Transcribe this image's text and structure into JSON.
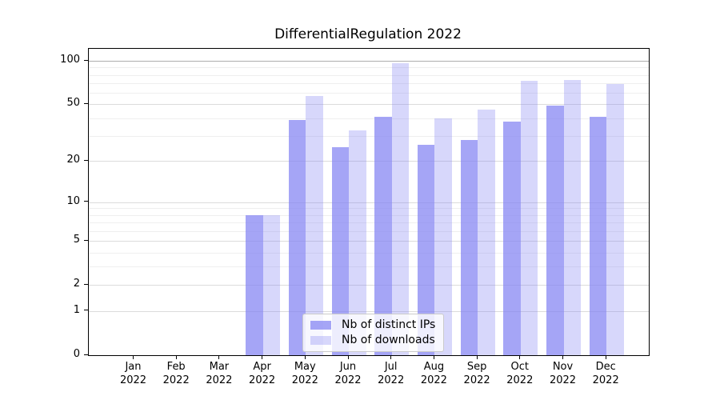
{
  "title": "DifferentialRegulation 2022",
  "chart_data": {
    "type": "bar",
    "title": "DifferentialRegulation 2022",
    "x_categories": [
      "Jan",
      "Feb",
      "Mar",
      "Apr",
      "May",
      "Jun",
      "Jul",
      "Aug",
      "Sep",
      "Oct",
      "Nov",
      "Dec"
    ],
    "x_year_suffix": "2022",
    "series": [
      {
        "name": "Nb of distinct IPs",
        "color": "rgba(130,130,242,0.72)",
        "values": [
          0,
          0,
          0,
          8,
          39,
          25,
          41,
          26,
          28,
          38,
          49,
          41
        ]
      },
      {
        "name": "Nb of downloads",
        "color": "rgba(130,130,242,0.32)",
        "values": [
          0,
          0,
          0,
          8,
          57,
          33,
          96,
          40,
          46,
          73,
          74,
          69
        ]
      }
    ],
    "y_scale": "log1p",
    "ylim": [
      0,
      100
    ],
    "y_major_ticks": [
      0,
      1,
      2,
      5,
      10,
      20,
      50,
      100
    ],
    "y_minor_gridlines": [
      3,
      4,
      6,
      7,
      8,
      9,
      30,
      40,
      60,
      70,
      80,
      90
    ],
    "grid": "horizontal-only",
    "legend": {
      "position": "lower-center-inside",
      "items": [
        "Nb of distinct IPs",
        "Nb of downloads"
      ]
    }
  },
  "colors": {
    "bar_base": "#8282f2",
    "grid_minor": "#efefef",
    "grid_major": "#dcdcdc",
    "grid_emphasis_100": "#adadad",
    "axis": "#000000",
    "text": "#000000",
    "legend_border": "#cbcbcb",
    "legend_background": "rgba(255,255,255,0.8)"
  }
}
